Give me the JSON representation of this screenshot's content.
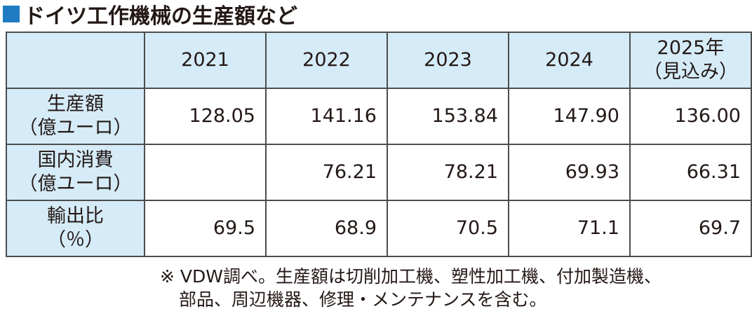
{
  "title": "ドイツ工作機械の生産額など",
  "table": {
    "header": [
      [
        "2021"
      ],
      [
        "2022"
      ],
      [
        "2023"
      ],
      [
        "2024"
      ],
      [
        "2025年",
        "（見込み）"
      ]
    ],
    "rows": [
      {
        "label": [
          "生産額",
          "（億ユーロ）"
        ],
        "values": [
          "128.05",
          "141.16",
          "153.84",
          "147.90",
          "136.00"
        ]
      },
      {
        "label": [
          "国内消費",
          "（億ユーロ）"
        ],
        "values": [
          null,
          "76.21",
          "78.21",
          "69.93",
          "66.31"
        ]
      },
      {
        "label": [
          "輸出比",
          "（％）"
        ],
        "values": [
          "69.5",
          "68.9",
          "70.5",
          "71.1",
          "69.7"
        ]
      }
    ]
  },
  "note": [
    "※ VDW調べ。生産額は切削加工機、塑性加工機、付加製造機、",
    "部品、周辺機器、修理・メンテナンスを含む。"
  ]
}
